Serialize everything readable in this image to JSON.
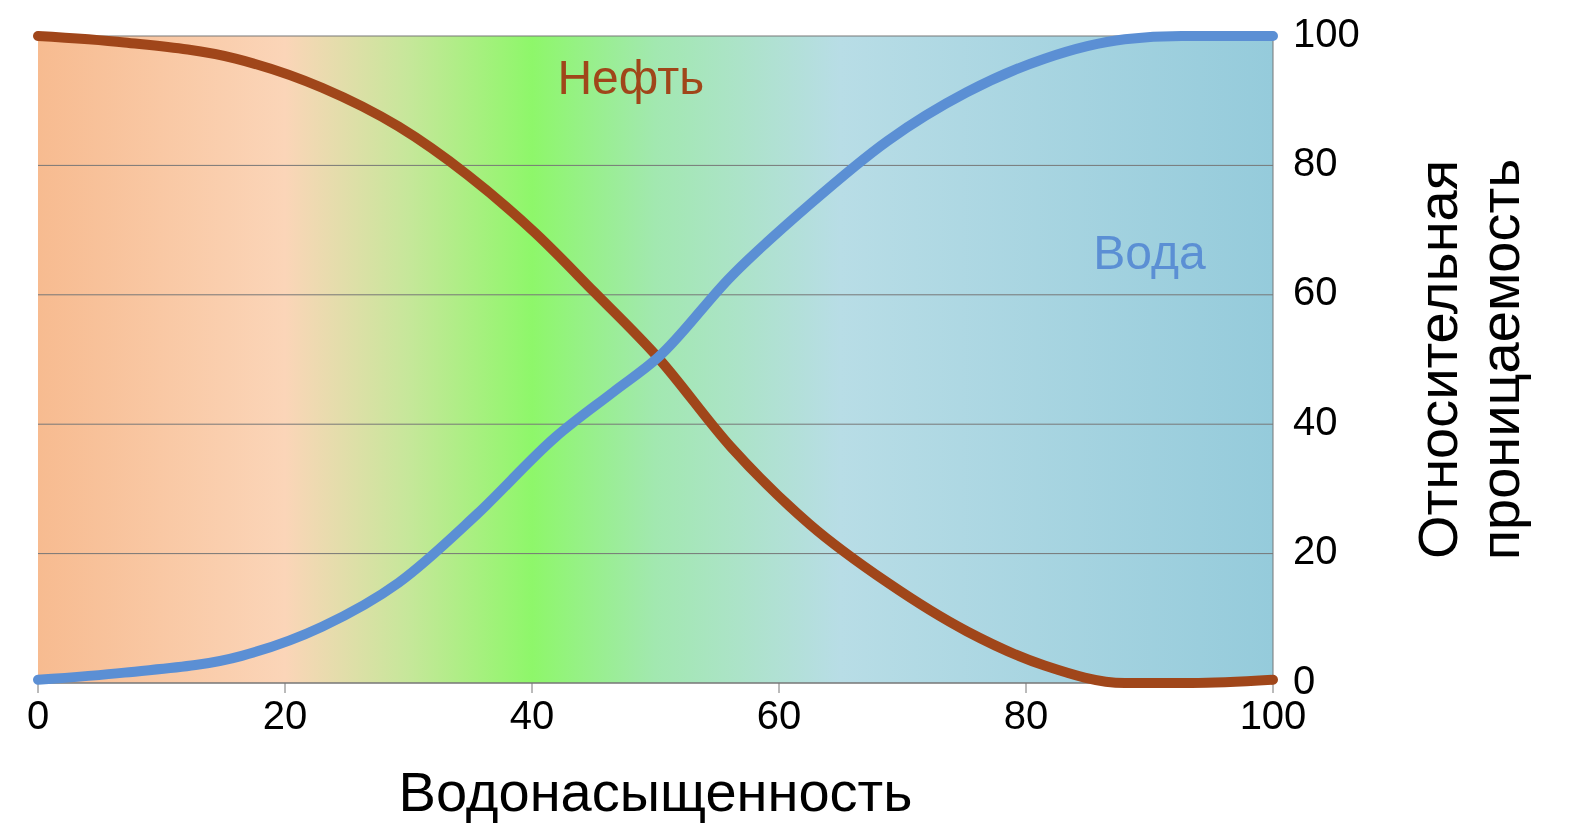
{
  "chart_data": {
    "type": "line",
    "xlabel": "Водонасыщенность",
    "ylabel": "Относительная проницаемость",
    "xlim": [
      0,
      100
    ],
    "xticks": [
      0,
      20,
      40,
      60,
      80,
      100
    ],
    "ylim": [
      0,
      100
    ],
    "yticks": [
      0,
      20,
      40,
      60,
      80,
      100
    ],
    "grid": "y",
    "legend": false,
    "marker": "none",
    "line_style": "solid",
    "series": [
      {
        "name": "Нефть",
        "color": "#a0461a",
        "x": [
          0,
          7,
          16,
          23,
          29.2,
          34.8,
          40.3,
          45,
          50.2,
          56.1,
          62.5,
          68.8,
          75.2,
          81.5,
          88,
          93.4,
          100
        ],
        "values": [
          100,
          99,
          96.5,
          92,
          86,
          78.5,
          69.5,
          60.5,
          50.3,
          36.5,
          24.5,
          15.5,
          8,
          2.7,
          0,
          0,
          0.5
        ]
      },
      {
        "name": "Вода",
        "color": "#5b8fd4",
        "x": [
          0,
          7,
          16.5,
          23,
          29.2,
          35.5,
          41.9,
          46.6,
          50.2,
          56.1,
          62.5,
          68.8,
          75.2,
          81.5,
          88,
          92.6,
          100
        ],
        "values": [
          0.5,
          1.6,
          4.2,
          8.7,
          15.5,
          26,
          38,
          45,
          50.3,
          62.8,
          74,
          83.8,
          91.3,
          96.5,
          99.5,
          100,
          100
        ]
      }
    ]
  }
}
